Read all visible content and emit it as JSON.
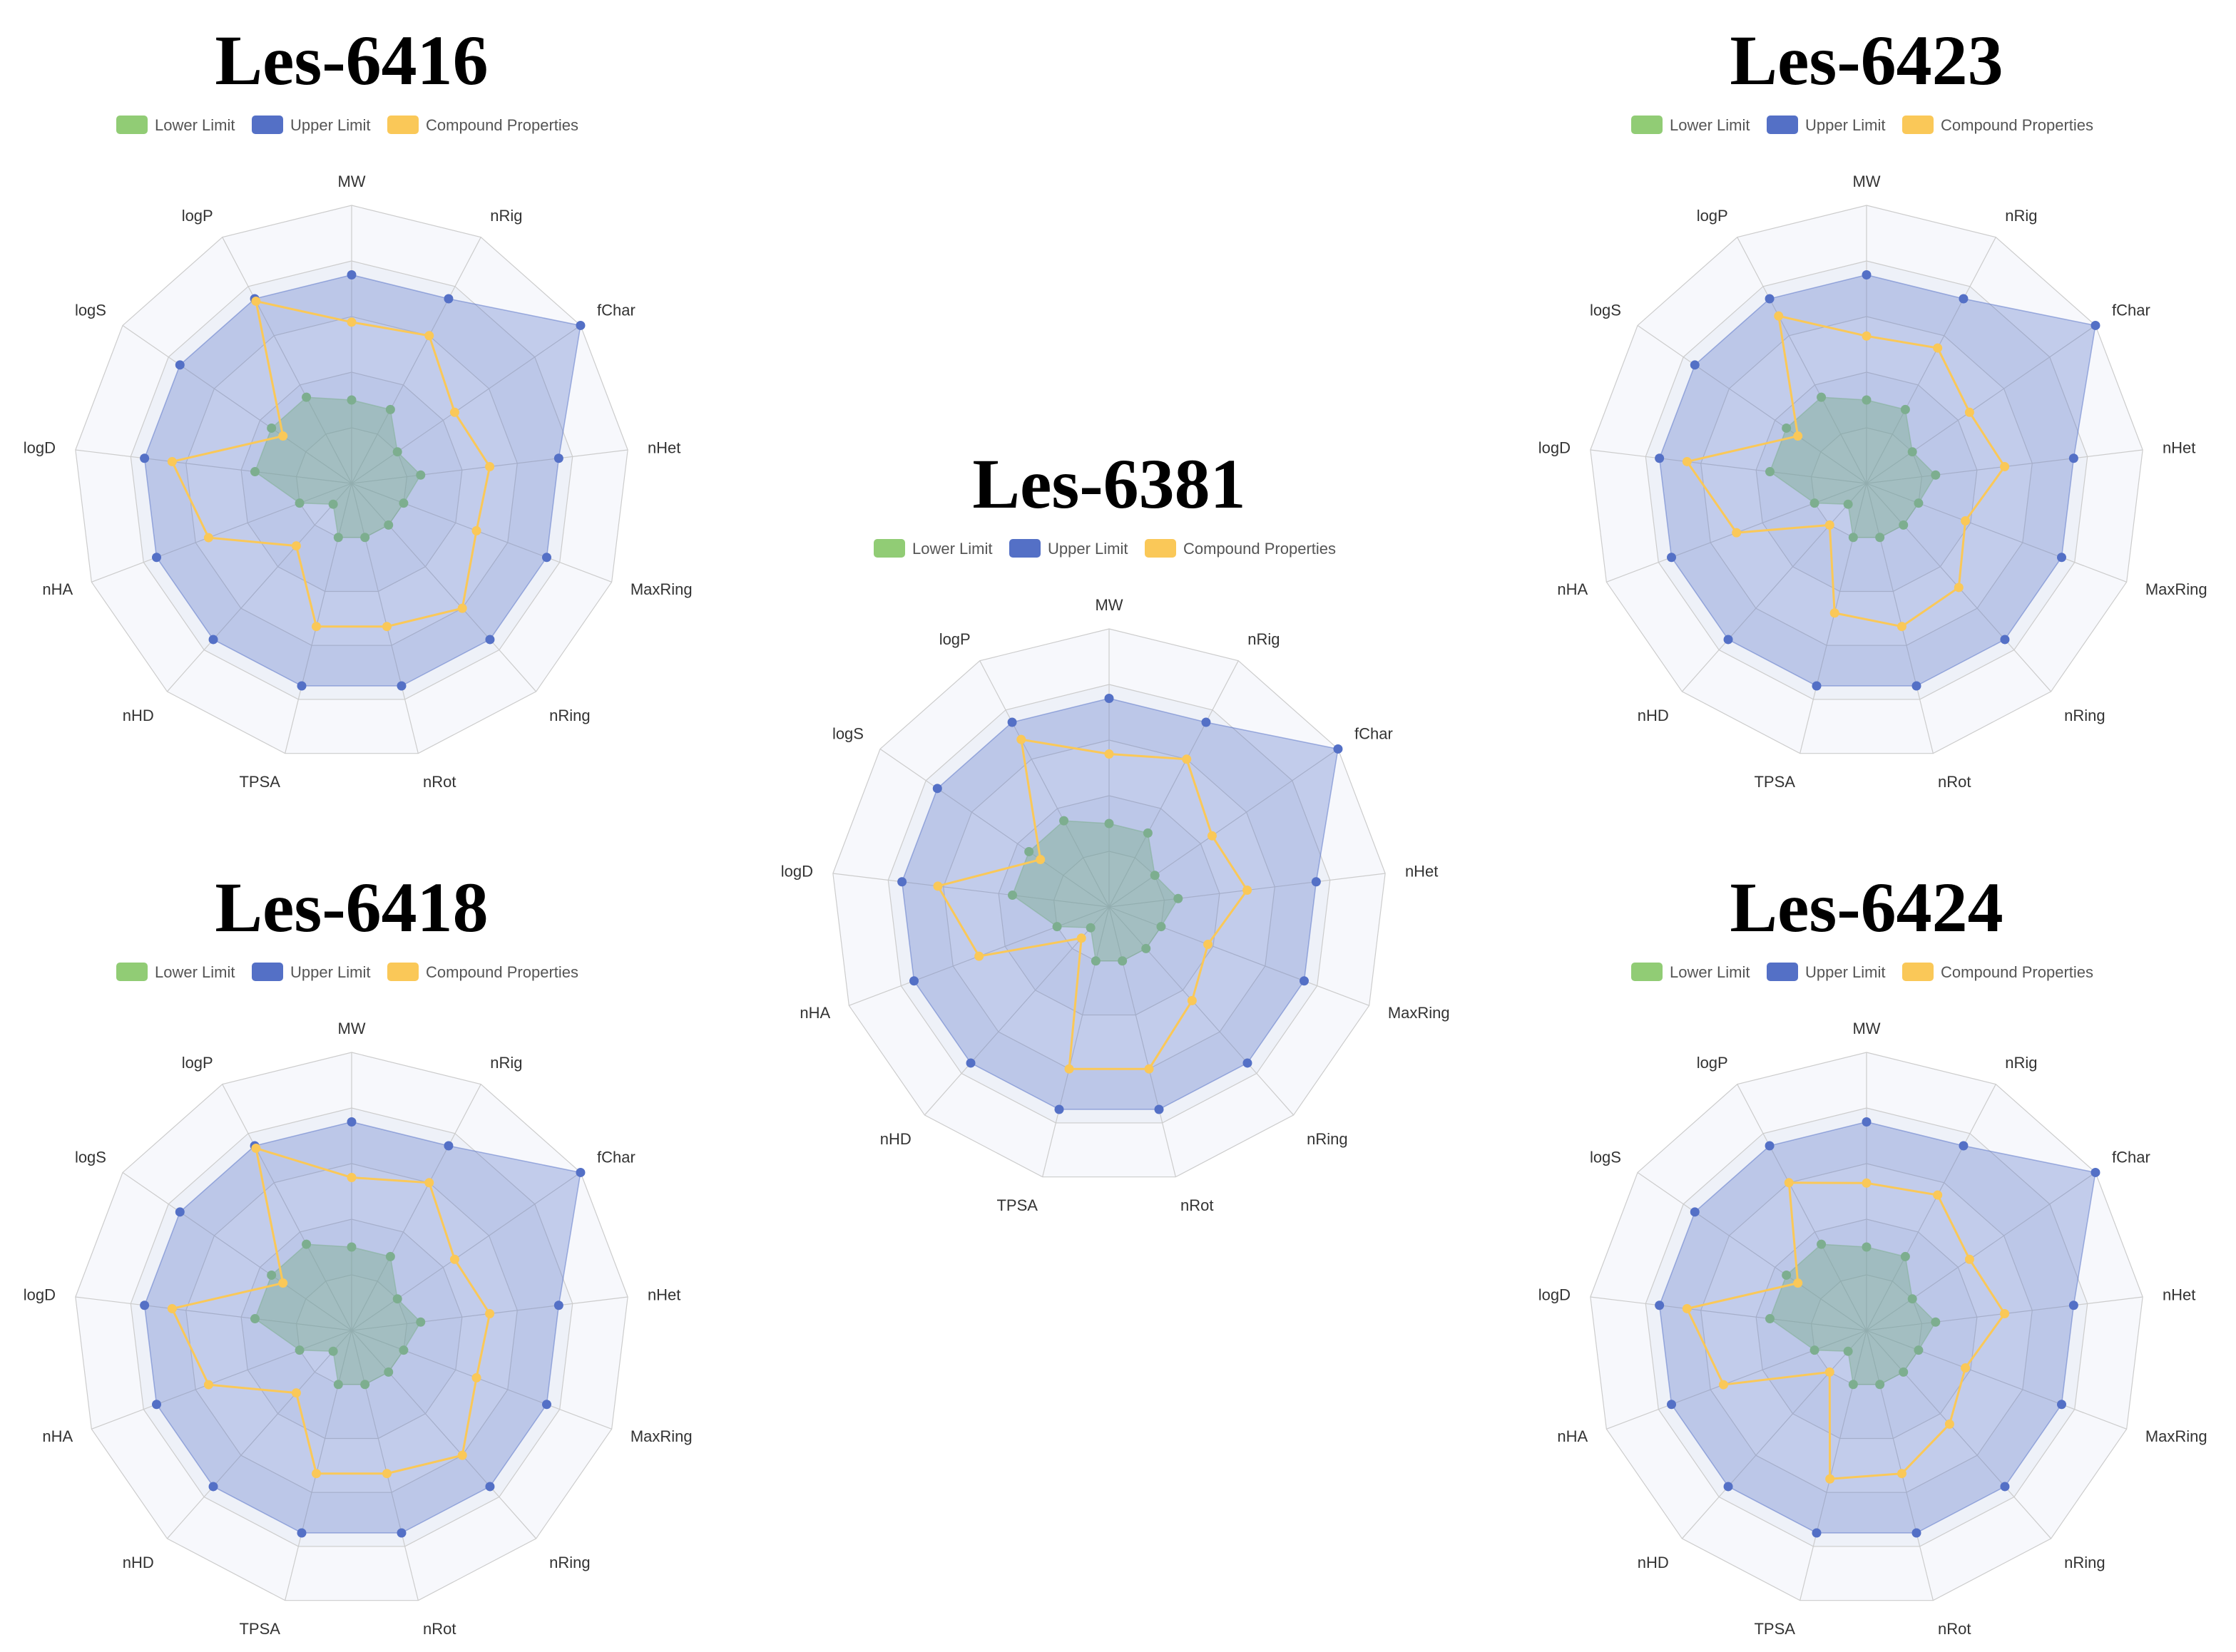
{
  "legend_labels": [
    "Lower Limit",
    "Upper Limit",
    "Compound Properties"
  ],
  "colors": {
    "lower": "#91cc75",
    "upper": "#5470c6",
    "compound": "#fac858",
    "grid_line": "#cccccc",
    "band_a": "#f7f8fc",
    "band_b": "#eef1f8"
  },
  "chart_data": [
    {
      "type": "radar",
      "title": "Les-6416",
      "indicators": [
        "MW",
        "nRig",
        "fChar",
        "nHet",
        "MaxRing",
        "nRing",
        "nRot",
        "TPSA",
        "nHD",
        "nHA",
        "logD",
        "logS",
        "logP"
      ],
      "max": 1,
      "series": [
        {
          "name": "Lower Limit",
          "values": [
            0.3,
            0.3,
            0.2,
            0.25,
            0.2,
            0.2,
            0.2,
            0.2,
            0.1,
            0.2,
            0.35,
            0.35,
            0.35
          ]
        },
        {
          "name": "Upper Limit",
          "values": [
            0.75,
            0.75,
            1.0,
            0.75,
            0.75,
            0.75,
            0.75,
            0.75,
            0.75,
            0.75,
            0.75,
            0.75,
            0.75
          ]
        },
        {
          "name": "Compound Properties",
          "values": [
            0.58,
            0.6,
            0.45,
            0.5,
            0.48,
            0.6,
            0.53,
            0.53,
            0.3,
            0.55,
            0.65,
            0.3,
            0.74
          ]
        }
      ]
    },
    {
      "type": "radar",
      "title": "Les-6423",
      "indicators": [
        "MW",
        "nRig",
        "fChar",
        "nHet",
        "MaxRing",
        "nRing",
        "nRot",
        "TPSA",
        "nHD",
        "nHA",
        "logD",
        "logS",
        "logP"
      ],
      "max": 1,
      "series": [
        {
          "name": "Lower Limit",
          "values": [
            0.3,
            0.3,
            0.2,
            0.25,
            0.2,
            0.2,
            0.2,
            0.2,
            0.1,
            0.2,
            0.35,
            0.35,
            0.35
          ]
        },
        {
          "name": "Upper Limit",
          "values": [
            0.75,
            0.75,
            1.0,
            0.75,
            0.75,
            0.75,
            0.75,
            0.75,
            0.75,
            0.75,
            0.75,
            0.75,
            0.75
          ]
        },
        {
          "name": "Compound Properties",
          "values": [
            0.53,
            0.55,
            0.45,
            0.5,
            0.38,
            0.5,
            0.53,
            0.48,
            0.2,
            0.5,
            0.65,
            0.3,
            0.68
          ]
        }
      ]
    },
    {
      "type": "radar",
      "title": "Les-6381",
      "indicators": [
        "MW",
        "nRig",
        "fChar",
        "nHet",
        "MaxRing",
        "nRing",
        "nRot",
        "TPSA",
        "nHD",
        "nHA",
        "logD",
        "logS",
        "logP"
      ],
      "max": 1,
      "series": [
        {
          "name": "Lower Limit",
          "values": [
            0.3,
            0.3,
            0.2,
            0.25,
            0.2,
            0.2,
            0.2,
            0.2,
            0.1,
            0.2,
            0.35,
            0.35,
            0.35
          ]
        },
        {
          "name": "Upper Limit",
          "values": [
            0.75,
            0.75,
            1.0,
            0.75,
            0.75,
            0.75,
            0.75,
            0.75,
            0.75,
            0.75,
            0.75,
            0.75,
            0.75
          ]
        },
        {
          "name": "Compound Properties",
          "values": [
            0.55,
            0.6,
            0.45,
            0.5,
            0.38,
            0.45,
            0.6,
            0.6,
            0.15,
            0.5,
            0.62,
            0.3,
            0.68
          ]
        }
      ]
    },
    {
      "type": "radar",
      "title": "Les-6418",
      "indicators": [
        "MW",
        "nRig",
        "fChar",
        "nHet",
        "MaxRing",
        "nRing",
        "nRot",
        "TPSA",
        "nHD",
        "nHA",
        "logD",
        "logS",
        "logP"
      ],
      "max": 1,
      "series": [
        {
          "name": "Lower Limit",
          "values": [
            0.3,
            0.3,
            0.2,
            0.25,
            0.2,
            0.2,
            0.2,
            0.2,
            0.1,
            0.2,
            0.35,
            0.35,
            0.35
          ]
        },
        {
          "name": "Upper Limit",
          "values": [
            0.75,
            0.75,
            1.0,
            0.75,
            0.75,
            0.75,
            0.75,
            0.75,
            0.75,
            0.75,
            0.75,
            0.75,
            0.75
          ]
        },
        {
          "name": "Compound Properties",
          "values": [
            0.55,
            0.6,
            0.45,
            0.5,
            0.48,
            0.6,
            0.53,
            0.53,
            0.3,
            0.55,
            0.65,
            0.3,
            0.74
          ]
        }
      ]
    },
    {
      "type": "radar",
      "title": "Les-6424",
      "indicators": [
        "MW",
        "nRig",
        "fChar",
        "nHet",
        "MaxRing",
        "nRing",
        "nRot",
        "TPSA",
        "nHD",
        "nHA",
        "logD",
        "logS",
        "logP"
      ],
      "max": 1,
      "series": [
        {
          "name": "Lower Limit",
          "values": [
            0.3,
            0.3,
            0.2,
            0.25,
            0.2,
            0.2,
            0.2,
            0.2,
            0.1,
            0.2,
            0.35,
            0.35,
            0.35
          ]
        },
        {
          "name": "Upper Limit",
          "values": [
            0.75,
            0.75,
            1.0,
            0.75,
            0.75,
            0.75,
            0.75,
            0.75,
            0.75,
            0.75,
            0.75,
            0.75,
            0.75
          ]
        },
        {
          "name": "Compound Properties",
          "values": [
            0.53,
            0.55,
            0.45,
            0.5,
            0.38,
            0.45,
            0.53,
            0.55,
            0.2,
            0.55,
            0.65,
            0.3,
            0.6
          ]
        }
      ]
    }
  ]
}
